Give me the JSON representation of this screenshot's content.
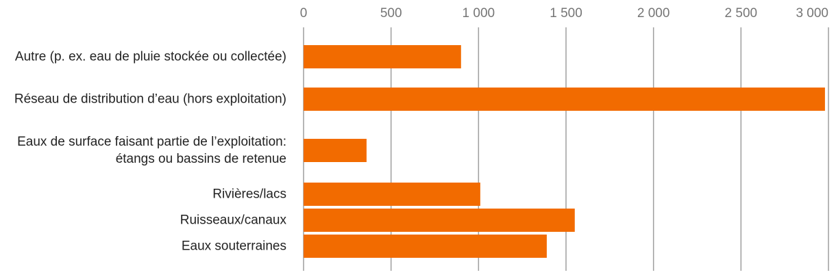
{
  "chart_data": {
    "type": "hbar",
    "categories": [
      "Autre (p. ex. eau de pluie stockée ou collectée)",
      "Réseau de distribution d’eau (hors exploitation)",
      "Eaux de surface faisant partie de l’exploitation: étangs ou bassins de retenue",
      "Rivières/lacs",
      "Ruisseaux/canaux",
      "Eaux souterraines"
    ],
    "values": [
      900,
      2980,
      360,
      1010,
      1550,
      1390
    ],
    "color": "#f26b00",
    "xlim": [
      0,
      3000
    ],
    "xticks": [
      0,
      500,
      {
        "value": 1000,
        "label": "1 000"
      },
      {
        "value": 1500,
        "label": "1 500"
      },
      {
        "value": 2000,
        "label": "2 000"
      },
      {
        "value": 2500,
        "label": "2 500"
      },
      {
        "value": 3000,
        "label": "3 000"
      }
    ],
    "grid": true
  }
}
